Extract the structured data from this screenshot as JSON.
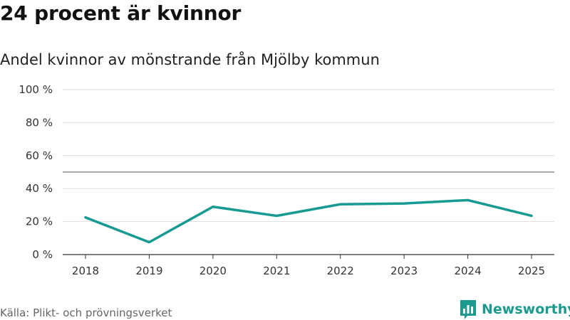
{
  "headline": "24 procent är kvinnor",
  "chart_data": {
    "type": "line",
    "title": "Andel kvinnor av mönstrande från Mjölby kommun",
    "xlabel": "",
    "ylabel": "",
    "categories": [
      "2018",
      "2019",
      "2020",
      "2021",
      "2022",
      "2023",
      "2024",
      "2025"
    ],
    "series": [
      {
        "name": "Andel kvinnor",
        "values": [
          22.5,
          7.5,
          29,
          23.5,
          30.5,
          31,
          33,
          23.5
        ],
        "color": "#179a91"
      }
    ],
    "reference_line": 50,
    "ylim": [
      0,
      100
    ],
    "yticks": [
      0,
      20,
      40,
      60,
      80,
      100
    ],
    "ytick_labels": [
      "0 %",
      "20 %",
      "40 %",
      "60 %",
      "80 %",
      "100 %"
    ],
    "grid": true
  },
  "source": "Källa: Plikt- och prövningsverket",
  "logo": {
    "icon": "bar-chart-icon",
    "text": "Newsworthy",
    "color": "#1d9a8e"
  }
}
